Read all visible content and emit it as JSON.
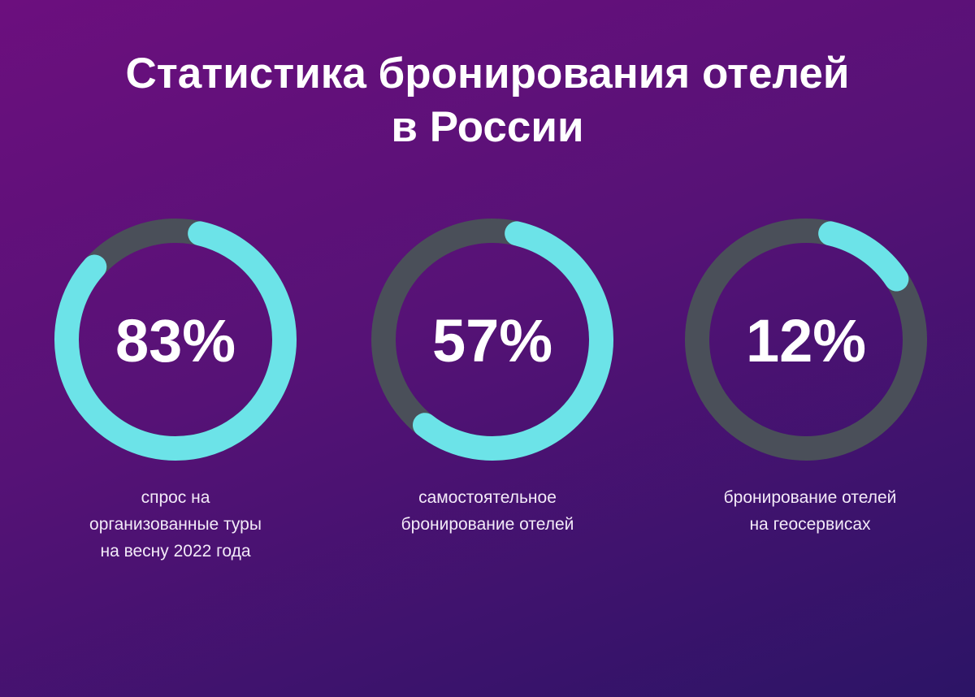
{
  "title": {
    "line1": "Статистика бронирования отелей",
    "line2": "в России"
  },
  "colors": {
    "background_start": "#6c0f7e",
    "background_end": "#2c1466",
    "track": "#4a4f59",
    "progress": "#6ce3e8",
    "text": "#ffffff"
  },
  "chart_data": [
    {
      "type": "pie",
      "title": "",
      "value_percent": 83,
      "label": "83%",
      "caption": [
        "спрос на",
        "организованные туры",
        "на весну 2022 года"
      ]
    },
    {
      "type": "pie",
      "title": "",
      "value_percent": 57,
      "label": "57%",
      "caption": [
        "самостоятельное",
        "бронирование отелей"
      ]
    },
    {
      "type": "pie",
      "title": "",
      "value_percent": 12,
      "label": "12%",
      "caption": [
        "бронирование отелей",
        "на геосервисах"
      ]
    }
  ]
}
